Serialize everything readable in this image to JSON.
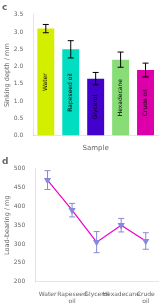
{
  "chart_data": [
    {
      "type": "bar",
      "title": "c",
      "categories": [
        "Water",
        "Rapeseed oil",
        "Glycerol",
        "Hexadecane",
        "Crude oil"
      ],
      "values": [
        3.1,
        2.5,
        1.65,
        2.2,
        1.9
      ],
      "errors": [
        0.12,
        0.25,
        0.18,
        0.22,
        0.2
      ],
      "colors": [
        "#d4ee00",
        "#00ddc0",
        "#4400cc",
        "#88dd77",
        "#dd00aa"
      ],
      "xlabel": "Sample",
      "ylabel": "Sinking depth / mm",
      "ylim": [
        0,
        3.5
      ],
      "yticks": [
        {
          "value": 0,
          "label": "0.0"
        },
        0.5,
        {
          "value": 1,
          "label": "1.0"
        },
        1.5,
        {
          "value": 2,
          "label": "2.0"
        },
        2.5,
        {
          "value": 3,
          "label": "3.0"
        },
        3.5
      ],
      "tick_labels": "y",
      "grid": false
    },
    {
      "type": "line",
      "title": "d",
      "categories": [
        "Water",
        "Rapeseed\noil",
        "Glycerol",
        "Hexadecane",
        "Crude\noil"
      ],
      "values": [
        470,
        390,
        305,
        350,
        308
      ],
      "errors": [
        25,
        18,
        28,
        18,
        22
      ],
      "color": "#ee00cc",
      "colors": [
        "#8888dd",
        "#8888dd",
        "#8888dd",
        "#8888dd",
        "#8888dd"
      ],
      "marker": "triangle_down",
      "ylabel": "Load-bearing / mg",
      "ylim": [
        200,
        500
      ],
      "yticks": [
        200,
        250,
        300,
        350,
        400,
        450,
        500
      ],
      "grid": false
    }
  ]
}
